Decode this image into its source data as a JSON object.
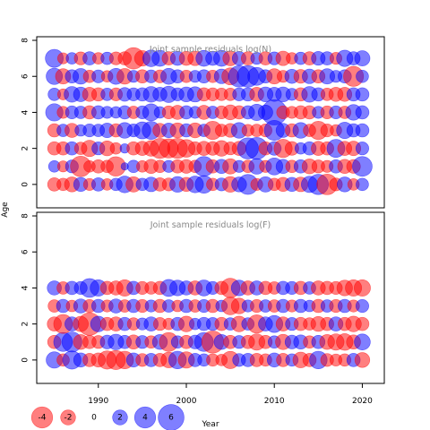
{
  "chart_data": {
    "type": "scatter",
    "colors": {
      "positive": "#0000FF",
      "negative": "#FF0000",
      "axis": "#000000",
      "title": "#888888"
    },
    "xlabel": "Year",
    "ylabel": "Age",
    "xlim": [
      1983,
      2022.5
    ],
    "x_ticks": [
      1990,
      2000,
      2010,
      2020
    ],
    "x_tick_labels": [
      "1990",
      "2000",
      "2010",
      "2020"
    ],
    "panels": [
      {
        "title": "Joint sample residuals log(N)",
        "ylim": [
          -1.3,
          8.2
        ],
        "y_ticks": [
          0,
          2,
          4,
          6,
          8
        ],
        "y_tick_labels": [
          "0",
          "2",
          "4",
          "6",
          "8"
        ],
        "years": [
          1985,
          1986,
          1987,
          1988,
          1989,
          1990,
          1991,
          1992,
          1993,
          1994,
          1995,
          1996,
          1997,
          1998,
          1999,
          2000,
          2001,
          2002,
          2003,
          2004,
          2005,
          2006,
          2007,
          2008,
          2009,
          2010,
          2011,
          2012,
          2013,
          2014,
          2015,
          2016,
          2017,
          2018,
          2019,
          2020
        ],
        "ages": [
          0,
          1,
          2,
          3,
          4,
          5,
          6,
          7
        ],
        "residuals": [
          [
            -1.6,
            -1.4,
            -2.0,
            1.8,
            -1.3,
            1.6,
            -1.2,
            1.4,
            2.5,
            -2.1,
            1.4,
            1.9,
            -1.6,
            -1.5,
            2.2,
            -1.8,
            2.5,
            2.8,
            -1.4,
            1.5,
            -2.2,
            2.0,
            3.6,
            -1.3,
            2.1,
            -1.4,
            -1.8,
            1.8,
            -1.9,
            2.4,
            3.7,
            -3.8,
            -1.5,
            2.0,
            -1.2,
            1.4
          ],
          [
            1.2,
            -1.1,
            1.5,
            -3.8,
            -1.2,
            -1.6,
            -1.4,
            -3.4,
            0.5,
            1.4,
            -1.2,
            -1.8,
            -1.4,
            1.3,
            -1.6,
            -1.7,
            -1.4,
            3.5,
            -1.6,
            1.8,
            -2.1,
            1.3,
            -1.4,
            2.2,
            -1.3,
            2.6,
            1.8,
            -1.4,
            1.6,
            -2.0,
            -1.5,
            -1.3,
            1.6,
            -1.8,
            -1.7,
            3.5
          ],
          [
            -1.6,
            -1.6,
            1.6,
            -1.4,
            -2.4,
            1.5,
            -2.0,
            -1.2,
            0.8,
            -1.6,
            -1.8,
            -2.2,
            -3.6,
            -3.3,
            -3.6,
            -2.8,
            -1.6,
            -1.8,
            -1.7,
            -2.2,
            -1.5,
            -1.8,
            4.0,
            4.3,
            -1.6,
            1.7,
            -3.0,
            -1.7,
            1.2,
            1.6,
            -1.8,
            -1.6,
            2.9,
            -1.8,
            -1.9,
            1.5
          ],
          [
            -1.6,
            1.4,
            -1.8,
            1.2,
            1.5,
            1.4,
            1.9,
            -1.6,
            2.2,
            1.5,
            2.6,
            2.9,
            -1.8,
            1.9,
            -2.0,
            1.6,
            -2.0,
            1.4,
            -3.0,
            -1.4,
            -1.7,
            2.2,
            -1.3,
            -1.4,
            -1.5,
            3.6,
            1.8,
            -1.6,
            2.2,
            -1.4,
            -3.0,
            -1.5,
            -1.2,
            2.4,
            1.6,
            1.6
          ],
          [
            2.7,
            -1.3,
            1.5,
            1.4,
            -1.6,
            1.6,
            1.3,
            1.2,
            1.6,
            -1.4,
            1.5,
            2.6,
            1.2,
            -1.5,
            -1.8,
            1.6,
            1.3,
            -1.8,
            1.4,
            -1.5,
            -2.0,
            -1.6,
            1.6,
            2.4,
            1.9,
            5.7,
            -1.5,
            -1.3,
            -1.6,
            -1.6,
            1.3,
            -1.5,
            1.5,
            -1.4,
            2.2,
            1.6
          ],
          [
            1.4,
            -1.1,
            2.2,
            1.9,
            -1.8,
            -1.6,
            1.4,
            -1.5,
            1.7,
            1.5,
            1.6,
            2.2,
            1.8,
            2.4,
            1.5,
            2.0,
            2.1,
            -1.6,
            -1.5,
            -1.4,
            -1.4,
            1.5,
            1.6,
            -1.8,
            2.0,
            1.8,
            2.0,
            1.3,
            -1.6,
            2.2,
            1.6,
            -1.4,
            -1.8,
            -1.8,
            1.6,
            1.6
          ],
          [
            2.4,
            -2.1,
            1.6,
            2.2,
            -1.4,
            1.5,
            -1.2,
            2.3,
            -2.2,
            1.3,
            -1.6,
            1.5,
            -1.5,
            2.3,
            1.6,
            -1.4,
            1.3,
            1.6,
            -1.4,
            1.9,
            -2.6,
            4.1,
            4.2,
            2.9,
            1.6,
            -2.1,
            -1.3,
            1.8,
            -1.7,
            1.9,
            -1.6,
            2.1,
            1.3,
            1.6,
            -3.6,
            1.4
          ],
          [
            2.9,
            -1.1,
            1.2,
            -1.5,
            1.6,
            -1.2,
            1.4,
            -1.5,
            -1.6,
            -4.1,
            -2.2,
            2.5,
            2.3,
            -1.6,
            1.8,
            -1.8,
            -1.9,
            2.3,
            1.8,
            2.3,
            -2.0,
            1.7,
            -1.6,
            1.3,
            -1.6,
            1.5,
            -1.9,
            -1.2,
            1.4,
            -1.6,
            1.7,
            1.6,
            -1.3,
            2.4,
            1.6,
            2.1
          ]
        ]
      },
      {
        "title": "Joint sample residuals log(F)",
        "ylim": [
          -1.3,
          8.2
        ],
        "y_ticks": [
          0,
          2,
          4,
          6,
          8
        ],
        "y_tick_labels": [
          "0",
          "2",
          "4",
          "6",
          "8"
        ],
        "years": [
          1985,
          1986,
          1987,
          1988,
          1989,
          1990,
          1991,
          1992,
          1993,
          1994,
          1995,
          1996,
          1997,
          1998,
          1999,
          2000,
          2001,
          2002,
          2003,
          2004,
          2005,
          2006,
          2007,
          2008,
          2009,
          2010,
          2011,
          2012,
          2013,
          2014,
          2015,
          2016,
          2017,
          2018,
          2019,
          2020
        ],
        "ages": [
          0,
          1,
          2,
          3,
          4
        ],
        "residuals": [
          [
            2.4,
            -1.4,
            3.0,
            1.8,
            -1.6,
            -1.8,
            -3.0,
            -3.3,
            -2.8,
            1.8,
            -1.5,
            1.6,
            -1.6,
            -2.2,
            2.8,
            -2.4,
            1.6,
            1.4,
            -1.4,
            -1.2,
            -2.7,
            1.5,
            1.6,
            -1.6,
            -1.4,
            1.8,
            -1.6,
            1.4,
            -2.2,
            -1.6,
            2.8,
            -1.5,
            -1.3,
            -1.4,
            1.6,
            -2.0
          ],
          [
            -1.6,
            3.2,
            3.6,
            -2.0,
            -1.6,
            -1.5,
            1.7,
            2.2,
            1.6,
            -1.8,
            1.5,
            -1.4,
            2.0,
            -3.2,
            1.4,
            -1.6,
            1.7,
            3.2,
            -4.4,
            2.0,
            -1.6,
            1.5,
            -1.6,
            -2.4,
            -1.6,
            1.4,
            -2.1,
            1.7,
            1.8,
            -1.4,
            1.6,
            -2.0,
            -2.4,
            -2.5,
            -1.8,
            2.3
          ],
          [
            -1.8,
            -3.2,
            1.8,
            -2.1,
            -4.6,
            2.2,
            -1.6,
            -1.8,
            1.6,
            -1.4,
            1.3,
            1.8,
            -1.5,
            -1.2,
            1.6,
            -2.2,
            1.2,
            1.6,
            1.5,
            -1.6,
            1.4,
            -2.2,
            1.4,
            -3.0,
            1.8,
            2.6,
            -1.8,
            1.5,
            -1.6,
            -1.4,
            -2.0,
            -1.6,
            1.8,
            -1.6,
            -2.2,
            -1.6
          ],
          [
            -1.4,
            1.6,
            -1.2,
            1.8,
            -1.5,
            1.6,
            -1.3,
            1.8,
            -1.4,
            1.6,
            -1.5,
            1.3,
            -1.6,
            1.4,
            -1.2,
            1.6,
            -1.4,
            1.5,
            -1.6,
            1.2,
            -2.8,
            -2.2,
            1.3,
            -1.5,
            1.4,
            -1.4,
            1.6,
            -1.3,
            1.6,
            1.2,
            -1.6,
            1.4,
            -1.5,
            1.6,
            -1.3,
            1.5
          ],
          [
            1.8,
            -1.4,
            1.6,
            1.5,
            3.2,
            2.4,
            -1.6,
            -1.8,
            -2.4,
            1.6,
            -1.5,
            -1.4,
            -1.6,
            2.6,
            2.2,
            1.8,
            -1.8,
            2.3,
            1.5,
            -1.6,
            -3.4,
            2.2,
            -1.8,
            1.8,
            -1.6,
            -1.4,
            1.6,
            1.5,
            -1.6,
            1.4,
            -1.8,
            -1.6,
            -1.5,
            -2.2,
            -2.4,
            -2.4
          ]
        ]
      }
    ],
    "legend": {
      "placement": "bottom-left",
      "values": [
        -4,
        -2,
        0,
        2,
        4,
        6
      ],
      "labels": [
        "-4",
        "-2",
        "0",
        "2",
        "4",
        "6"
      ]
    }
  }
}
